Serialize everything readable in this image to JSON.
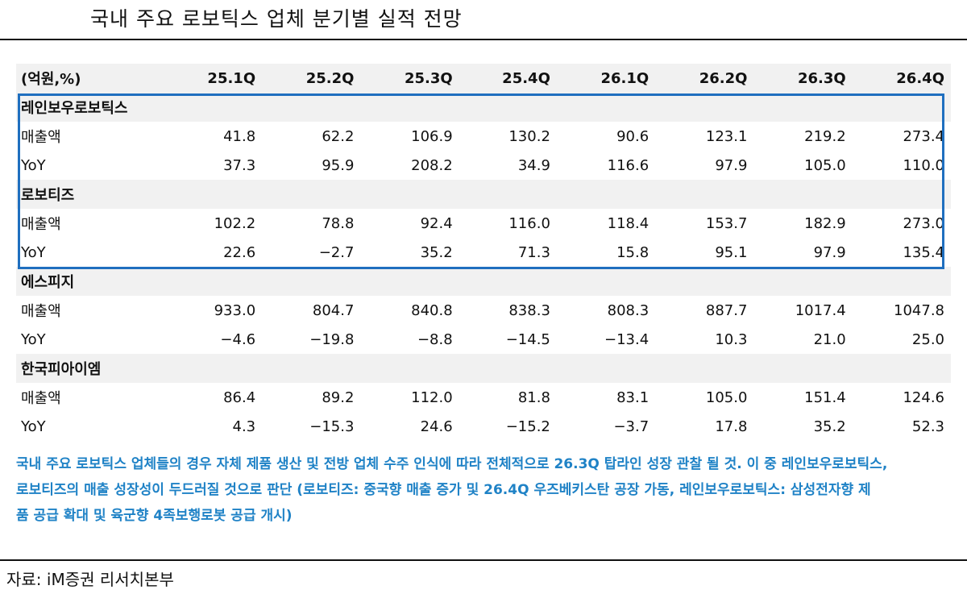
{
  "title": "국내 주요 로보틱스 업체 분기별 실적 전망",
  "table": {
    "unit": "(억원,%)",
    "quarters": [
      "25.1Q",
      "25.2Q",
      "25.3Q",
      "25.4Q",
      "26.1Q",
      "26.2Q",
      "26.3Q",
      "26.4Q"
    ],
    "companies": [
      {
        "name": "레인보우로보틱스",
        "rows": [
          {
            "label": "매출액",
            "values": [
              "41.8",
              "62.2",
              "106.9",
              "130.2",
              "90.6",
              "123.1",
              "219.2",
              "273.4"
            ]
          },
          {
            "label": "YoY",
            "values": [
              "37.3",
              "95.9",
              "208.2",
              "34.9",
              "116.6",
              "97.9",
              "105.0",
              "110.0"
            ]
          }
        ]
      },
      {
        "name": "로보티즈",
        "rows": [
          {
            "label": "매출액",
            "values": [
              "102.2",
              "78.8",
              "92.4",
              "116.0",
              "118.4",
              "153.7",
              "182.9",
              "273.0"
            ]
          },
          {
            "label": "YoY",
            "values": [
              "22.6",
              "−2.7",
              "35.2",
              "71.3",
              "15.8",
              "95.1",
              "97.9",
              "135.4"
            ]
          }
        ]
      },
      {
        "name": "에스피지",
        "rows": [
          {
            "label": "매출액",
            "values": [
              "933.0",
              "804.7",
              "840.8",
              "838.3",
              "808.3",
              "887.7",
              "1017.4",
              "1047.8"
            ]
          },
          {
            "label": "YoY",
            "values": [
              "−4.6",
              "−19.8",
              "−8.8",
              "−14.5",
              "−13.4",
              "10.3",
              "21.0",
              "25.0"
            ]
          }
        ]
      },
      {
        "name": "한국피아이엠",
        "rows": [
          {
            "label": "매출액",
            "values": [
              "86.4",
              "89.2",
              "112.0",
              "81.8",
              "83.1",
              "105.0",
              "151.4",
              "124.6"
            ]
          },
          {
            "label": "YoY",
            "values": [
              "4.3",
              "−15.3",
              "24.6",
              "−15.2",
              "−3.7",
              "17.8",
              "35.2",
              "52.3"
            ]
          }
        ]
      }
    ]
  },
  "note_lines": [
    "국내 주요 로보틱스 업체들의 경우 자체 제품 생산 및 전방 업체 수주 인식에 따라 전체적으로 26.3Q 탑라인 성장 관찰 될 것. 이 중 레인보우로보틱스,",
    "로보티즈의 매출 성장성이 두드러질 것으로 판단 (로보티즈: 중국향 매출 증가 및 26.4Q 우즈베키스탄 공장 가동, 레인보우로보틱스: 삼성전자향 제",
    "품 공급 확대 및 육군향 4족보행로봇 공급 개시)"
  ],
  "source": "자료: iM증권 리서치본부",
  "colors": {
    "highlight_box": "#1f6fbf",
    "note_text": "#1f82c6",
    "header_bg": "#f1f1f1"
  }
}
